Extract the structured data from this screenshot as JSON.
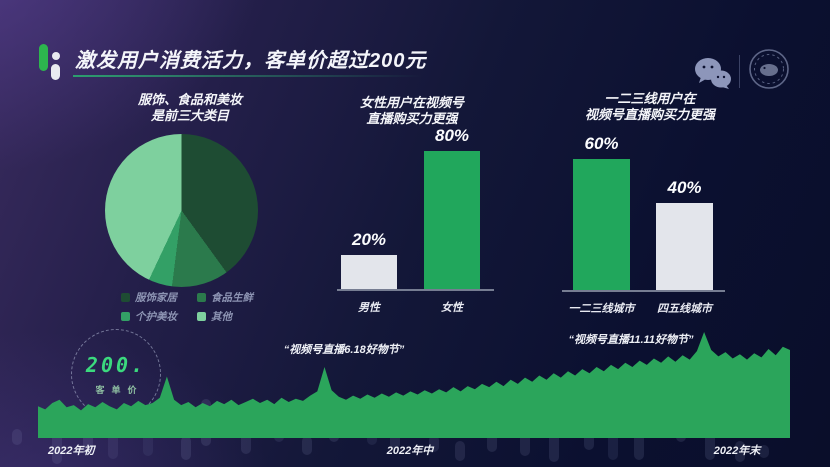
{
  "header": {
    "title": "激发用户消费活力，客单价超过200元",
    "icons": {
      "brand": "green-mic-bullet-logo",
      "wechat": "wechat-logo",
      "channels": "shipinhao-channels-logo"
    }
  },
  "badge": {
    "value": "200.",
    "label": "客单价"
  },
  "colors": {
    "accent_green": "#21a75c",
    "light_bar": "#e3e5eb",
    "area_green": "#2ba55b",
    "axis_gray": "#767d92",
    "background_top": "#392b5e",
    "background_bottom": "#0a0e2a"
  },
  "chart_data": [
    {
      "id": "category-pie",
      "type": "pie",
      "title_lines": [
        "服饰、食品和美妆",
        "是前三大类目"
      ],
      "labels": [
        "服饰家居",
        "食品生鲜",
        "个护美妆",
        "其他"
      ],
      "values": [
        40,
        12,
        5,
        43
      ],
      "unit": "%",
      "colors": [
        "#1e4c33",
        "#2b7a4c",
        "#33a066",
        "#7ed09e"
      ],
      "legend_position": "bottom"
    },
    {
      "id": "gender-bars",
      "type": "bar",
      "title_lines": [
        "女性用户在视频号",
        "直播购买力更强"
      ],
      "categories": [
        "男性",
        "女性"
      ],
      "values": [
        20,
        80
      ],
      "value_labels": [
        "20%",
        "80%"
      ],
      "colors": [
        "#e3e5eb",
        "#21a75c"
      ],
      "ylim": [
        0,
        93
      ]
    },
    {
      "id": "city-bars",
      "type": "bar",
      "title_lines": [
        "一二三线用户在",
        "视频号直播购买力更强"
      ],
      "categories": [
        "一二三线城市",
        "四五线城市"
      ],
      "values": [
        60,
        40
      ],
      "value_labels": [
        "60%",
        "40%"
      ],
      "colors": [
        "#21a75c",
        "#e3e5eb"
      ],
      "ylim": [
        0,
        73
      ]
    },
    {
      "id": "order-value-trend",
      "type": "area",
      "x_labels": [
        "2022年初",
        "2022年中",
        "2022年末"
      ],
      "annotations": [
        "“视频号直播6.18好物节”",
        "“视频号直播11.11好物节”"
      ],
      "color": "#2ba55b",
      "values": [
        30,
        27,
        33,
        36,
        29,
        31,
        26,
        32,
        29,
        34,
        30,
        27,
        33,
        30,
        35,
        31,
        33,
        38,
        58,
        36,
        31,
        34,
        29,
        33,
        30,
        35,
        32,
        36,
        31,
        34,
        37,
        33,
        36,
        32,
        38,
        34,
        37,
        35,
        40,
        44,
        67,
        45,
        39,
        36,
        40,
        37,
        41,
        38,
        42,
        39,
        43,
        40,
        44,
        41,
        45,
        42,
        46,
        43,
        48,
        44,
        49,
        46,
        51,
        48,
        53,
        49,
        55,
        51,
        57,
        53,
        59,
        55,
        61,
        57,
        63,
        59,
        65,
        61,
        67,
        63,
        69,
        65,
        71,
        67,
        73,
        69,
        75,
        71,
        77,
        72,
        78,
        74,
        82,
        100,
        83,
        77,
        81,
        75,
        79,
        74,
        80,
        76,
        84,
        78,
        86,
        83
      ]
    }
  ]
}
